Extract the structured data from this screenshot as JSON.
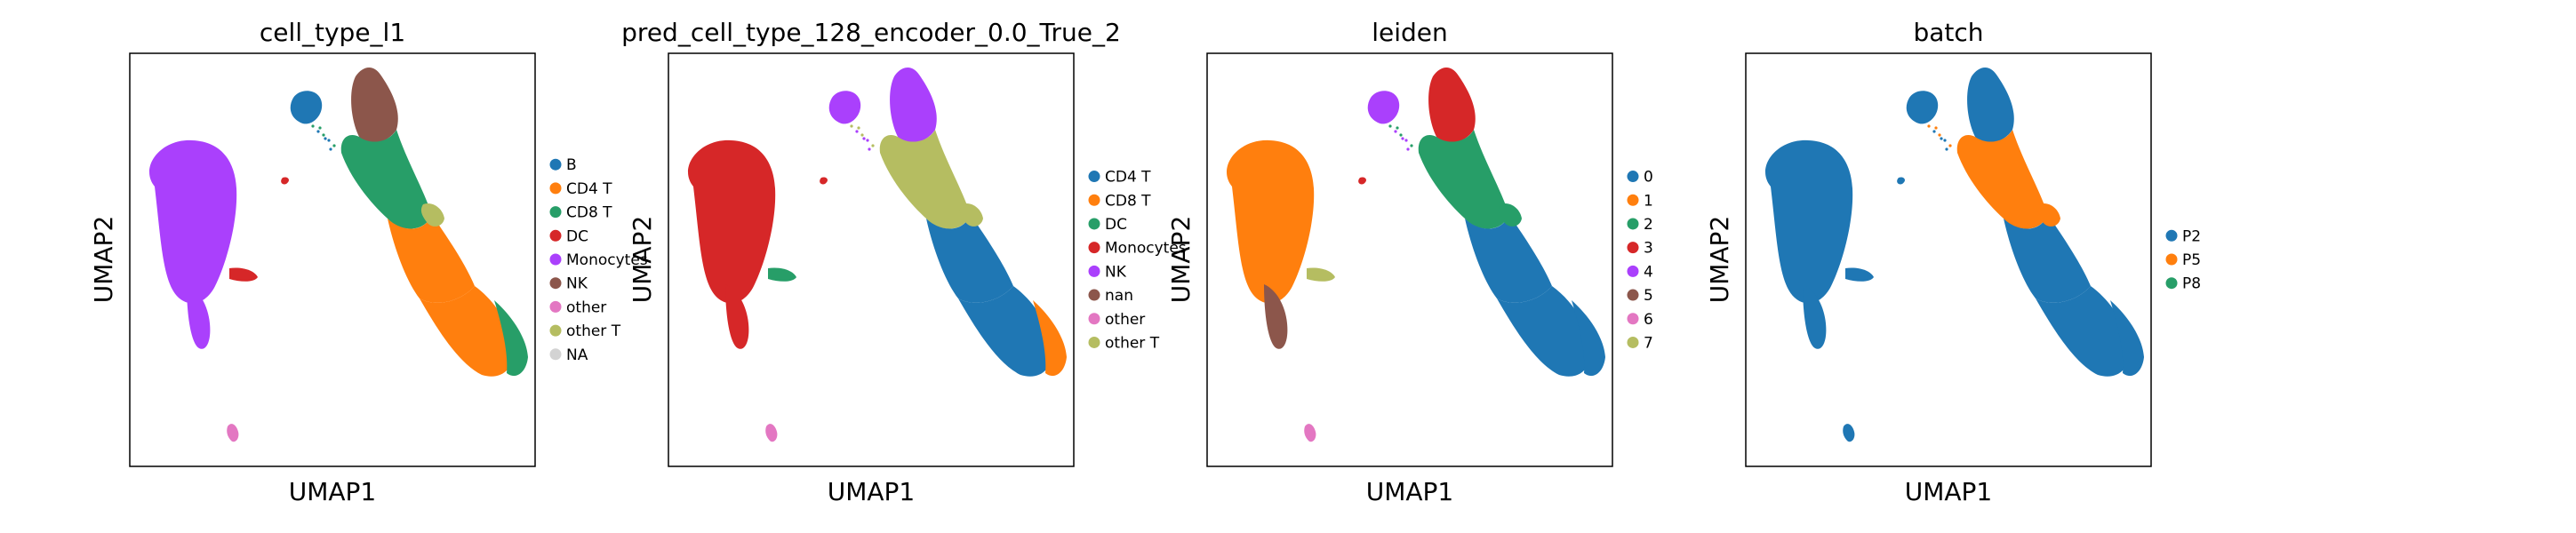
{
  "colors": {
    "blue": "#1f77b4",
    "orange": "#ff7f0e",
    "green": "#279e68",
    "red": "#d62728",
    "purple": "#aa40fc",
    "brown": "#8c564b",
    "pink": "#e377c2",
    "olive": "#b5bd61",
    "lightgray": "#d3d3d3"
  },
  "chart_data": [
    {
      "type": "scatter",
      "title": "cell_type_l1",
      "xlabel": "UMAP1",
      "ylabel": "UMAP2",
      "legend_position": "right",
      "legend": [
        {
          "label": "B",
          "color": "#1f77b4"
        },
        {
          "label": "CD4 T",
          "color": "#ff7f0e"
        },
        {
          "label": "CD8 T",
          "color": "#279e68"
        },
        {
          "label": "DC",
          "color": "#d62728"
        },
        {
          "label": "Monocytes",
          "color": "#aa40fc"
        },
        {
          "label": "NK",
          "color": "#8c564b"
        },
        {
          "label": "other",
          "color": "#e377c2"
        },
        {
          "label": "other T",
          "color": "#b5bd61"
        },
        {
          "label": "NA",
          "color": "#d3d3d3"
        }
      ],
      "regions": {
        "b_cluster": "#1f77b4",
        "top_cluster": "#8c564b",
        "upper_arm": "#279e68",
        "middle_arm": "#ff7f0e",
        "lower_arm": "#ff7f0e",
        "arm_tip": "#279e68",
        "left_blob": "#aa40fc",
        "left_stem": "#aa40fc",
        "left_stub": "#d62728",
        "small_dot": "#d62728",
        "bottom_cluster": "#e377c2",
        "olive_patch": "#b5bd61"
      }
    },
    {
      "type": "scatter",
      "title": "pred_cell_type_128_encoder_0.0_True_2",
      "xlabel": "UMAP1",
      "ylabel": "UMAP2",
      "legend_position": "right",
      "legend": [
        {
          "label": "CD4 T",
          "color": "#1f77b4"
        },
        {
          "label": "CD8 T",
          "color": "#ff7f0e"
        },
        {
          "label": "DC",
          "color": "#279e68"
        },
        {
          "label": "Monocytes",
          "color": "#d62728"
        },
        {
          "label": "NK",
          "color": "#aa40fc"
        },
        {
          "label": "nan",
          "color": "#8c564b"
        },
        {
          "label": "other",
          "color": "#e377c2"
        },
        {
          "label": "other T",
          "color": "#b5bd61"
        }
      ],
      "regions": {
        "b_cluster": "#aa40fc",
        "top_cluster": "#aa40fc",
        "upper_arm": "#b5bd61",
        "middle_arm": "#1f77b4",
        "lower_arm": "#1f77b4",
        "arm_tip": "#ff7f0e",
        "left_blob": "#d62728",
        "left_stem": "#d62728",
        "left_stub": "#279e68",
        "small_dot": "#d62728",
        "bottom_cluster": "#e377c2",
        "olive_patch": "#b5bd61"
      }
    },
    {
      "type": "scatter",
      "title": "leiden",
      "xlabel": "UMAP1",
      "ylabel": "UMAP2",
      "legend_position": "right",
      "legend": [
        {
          "label": "0",
          "color": "#1f77b4"
        },
        {
          "label": "1",
          "color": "#ff7f0e"
        },
        {
          "label": "2",
          "color": "#279e68"
        },
        {
          "label": "3",
          "color": "#d62728"
        },
        {
          "label": "4",
          "color": "#aa40fc"
        },
        {
          "label": "5",
          "color": "#8c564b"
        },
        {
          "label": "6",
          "color": "#e377c2"
        },
        {
          "label": "7",
          "color": "#b5bd61"
        }
      ],
      "regions": {
        "b_cluster": "#aa40fc",
        "top_cluster": "#d62728",
        "upper_arm": "#279e68",
        "middle_arm": "#1f77b4",
        "lower_arm": "#1f77b4",
        "arm_tip": "#1f77b4",
        "left_blob": "#ff7f0e",
        "left_stem": "#8c564b",
        "left_stub": "#b5bd61",
        "small_dot": "#d62728",
        "bottom_cluster": "#e377c2",
        "olive_patch": "#279e68"
      }
    },
    {
      "type": "scatter",
      "title": "batch",
      "xlabel": "UMAP1",
      "ylabel": "UMAP2",
      "legend_position": "right",
      "legend": [
        {
          "label": "P2",
          "color": "#1f77b4"
        },
        {
          "label": "P5",
          "color": "#ff7f0e"
        },
        {
          "label": "P8",
          "color": "#279e68"
        }
      ],
      "regions": {
        "b_cluster": "#1f77b4",
        "top_cluster": "#1f77b4",
        "upper_arm": "#ff7f0e",
        "middle_arm": "#1f77b4",
        "lower_arm": "#1f77b4",
        "arm_tip": "#1f77b4",
        "left_blob": "#1f77b4",
        "left_stem": "#1f77b4",
        "left_stub": "#1f77b4",
        "small_dot": "#1f77b4",
        "bottom_cluster": "#1f77b4",
        "olive_patch": "#ff7f0e"
      }
    }
  ]
}
